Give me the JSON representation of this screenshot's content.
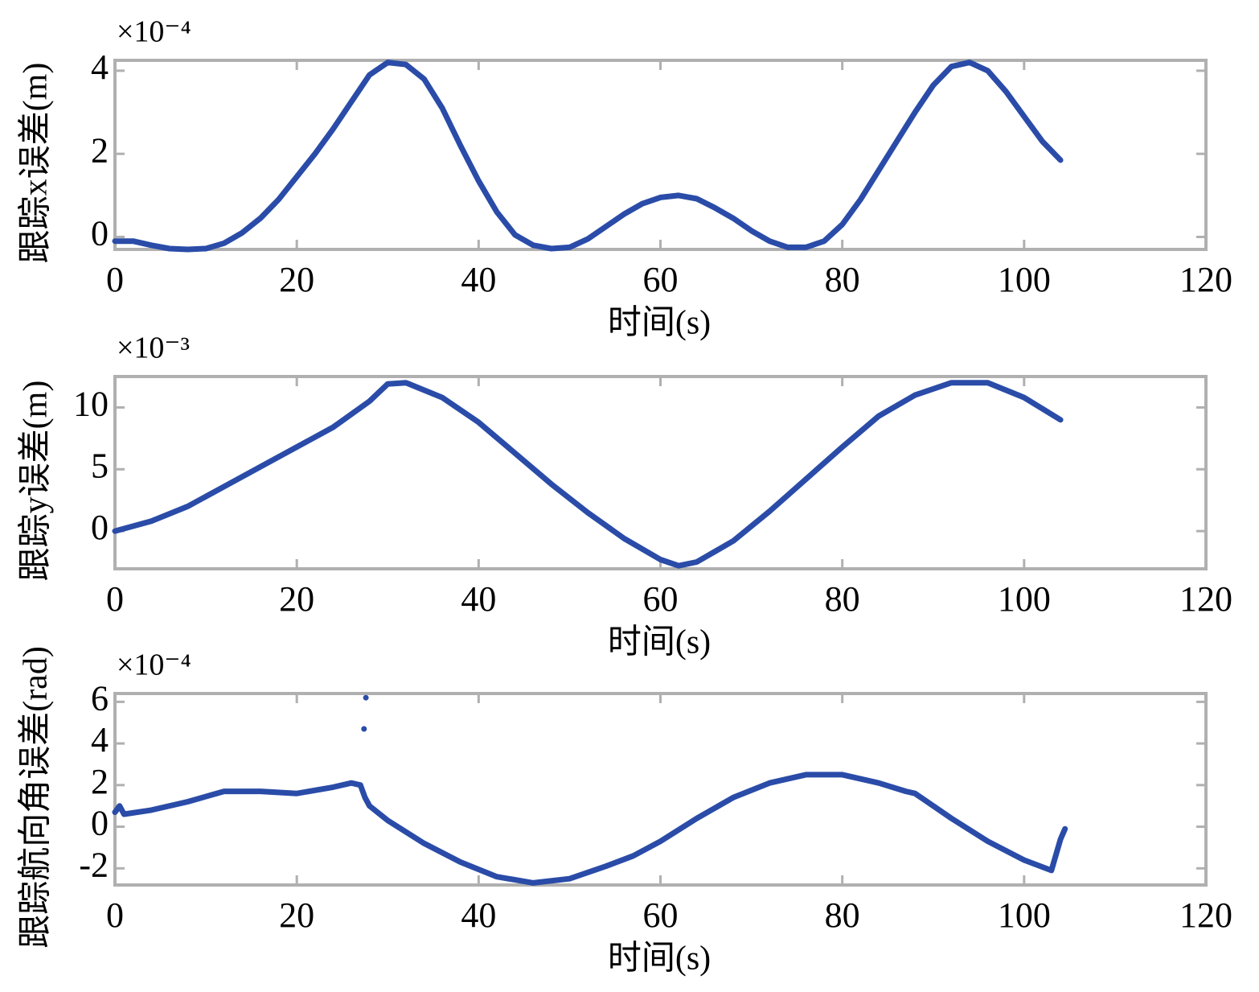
{
  "chart_data": [
    {
      "type": "line",
      "ylabel": "跟踪x误差(m)",
      "xlabel": "时间(s)",
      "scale_label": "×10⁻⁴",
      "color": "#2a4ca8",
      "x": [
        0,
        2,
        4,
        6,
        8,
        10,
        12,
        14,
        16,
        18,
        20,
        22,
        24,
        26,
        28,
        30,
        32,
        34,
        36,
        38,
        40,
        42,
        44,
        46,
        48,
        50,
        52,
        54,
        56,
        58,
        60,
        62,
        64,
        66,
        68,
        70,
        72,
        74,
        76,
        78,
        80,
        82,
        84,
        86,
        88,
        90,
        92,
        94,
        96,
        98,
        100,
        102,
        104
      ],
      "values": [
        -0.1,
        -0.1,
        -0.2,
        -0.28,
        -0.3,
        -0.28,
        -0.15,
        0.1,
        0.45,
        0.9,
        1.45,
        2.0,
        2.6,
        3.25,
        3.9,
        4.2,
        4.15,
        3.8,
        3.1,
        2.2,
        1.35,
        0.6,
        0.05,
        -0.2,
        -0.28,
        -0.25,
        -0.05,
        0.25,
        0.55,
        0.8,
        0.95,
        1.0,
        0.92,
        0.7,
        0.45,
        0.15,
        -0.1,
        -0.25,
        -0.25,
        -0.1,
        0.3,
        0.9,
        1.6,
        2.3,
        3.0,
        3.65,
        4.1,
        4.2,
        4.0,
        3.5,
        2.9,
        2.3,
        1.85
      ],
      "xlim": [
        0,
        120
      ],
      "ylim": [
        -0.3,
        4.25
      ],
      "xticks": [
        0,
        20,
        40,
        60,
        80,
        100,
        120
      ],
      "yticks": [
        0,
        2,
        4
      ]
    },
    {
      "type": "line",
      "ylabel": "跟踪y误差(m)",
      "xlabel": "时间(s)",
      "scale_label": "×10⁻³",
      "color": "#2a4ca8",
      "x": [
        0,
        4,
        8,
        12,
        16,
        20,
        24,
        28,
        30,
        32,
        36,
        40,
        44,
        48,
        52,
        56,
        60,
        62,
        64,
        68,
        72,
        76,
        80,
        84,
        88,
        92,
        96,
        100,
        104
      ],
      "values": [
        0,
        0.8,
        2.0,
        3.6,
        5.2,
        6.8,
        8.4,
        10.5,
        11.9,
        12.0,
        10.8,
        8.8,
        6.3,
        3.8,
        1.5,
        -0.6,
        -2.3,
        -2.8,
        -2.5,
        -0.8,
        1.6,
        4.2,
        6.8,
        9.3,
        11.0,
        12.0,
        12.0,
        10.8,
        9.0
      ],
      "xlim": [
        0,
        120
      ],
      "ylim": [
        -3.05,
        12.5
      ],
      "xticks": [
        0,
        20,
        40,
        60,
        80,
        100,
        120
      ],
      "yticks": [
        0,
        5,
        10
      ]
    },
    {
      "type": "line",
      "ylabel": "跟踪航向角误差(rad)",
      "xlabel": "时间(s)",
      "scale_label": "×10⁻⁴",
      "color": "#2a4ca8",
      "x": [
        0,
        0.5,
        1,
        4,
        8,
        12,
        16,
        20,
        24,
        26,
        27,
        27.5,
        28,
        30,
        34,
        38,
        42,
        46,
        50,
        54,
        57,
        60,
        64,
        68,
        72,
        76,
        80,
        84,
        87,
        88,
        92,
        96,
        100,
        103,
        104,
        104.5,
        27.3,
        27.4,
        27.45,
        27.6
      ],
      "values": [
        0.7,
        1.0,
        0.6,
        0.8,
        1.2,
        1.7,
        1.7,
        1.6,
        1.9,
        2.1,
        2.0,
        1.4,
        1.0,
        0.3,
        -0.8,
        -1.7,
        -2.4,
        -2.7,
        -2.5,
        -1.9,
        -1.4,
        -0.7,
        0.4,
        1.4,
        2.1,
        2.5,
        2.5,
        2.1,
        1.7,
        1.6,
        0.4,
        -0.7,
        -1.6,
        -2.1,
        -0.6,
        -0.1,
        null,
        4.7,
        null,
        6.2
      ],
      "xlim": [
        0,
        120
      ],
      "ylim": [
        -2.8,
        6.4
      ],
      "xticks": [
        0,
        20,
        40,
        60,
        80,
        100,
        120
      ],
      "yticks": [
        -2,
        0,
        2,
        4,
        6
      ]
    }
  ]
}
